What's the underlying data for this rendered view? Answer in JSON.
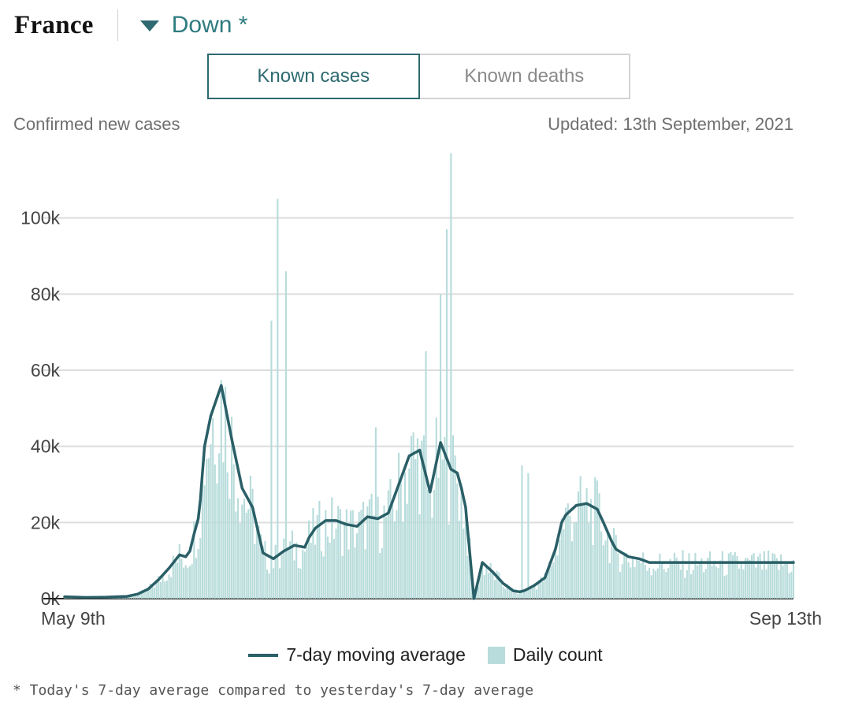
{
  "header": {
    "country": "France",
    "trend_label": "Down *"
  },
  "tabs": [
    {
      "label": "Known cases",
      "active": true
    },
    {
      "label": "Known deaths",
      "active": false
    }
  ],
  "subtitle": "Confirmed new cases",
  "updated": "Updated: 13th September, 2021",
  "legend": {
    "line_label": "7-day moving average",
    "bar_label": "Daily count"
  },
  "footnote": "* Today's 7-day average compared to yesterday's 7-day average",
  "colors": {
    "accent": "#2e6a70",
    "line": "#2a5f67",
    "bars": "#b8dcdb",
    "grid": "#dddddd"
  },
  "chart_data": {
    "type": "bar",
    "title": "",
    "xlabel": "",
    "ylabel": "",
    "x_start_label": "May 9th",
    "x_end_label": "Sep 13th",
    "ylim": [
      0,
      120000
    ],
    "yticks": [
      0,
      20000,
      40000,
      60000,
      80000,
      100000
    ],
    "ytick_labels": [
      "0k",
      "20k",
      "40k",
      "60k",
      "80k",
      "100k"
    ],
    "grid": true,
    "legend_position": "bottom",
    "series": [
      {
        "name": "7-day moving average",
        "kind": "line",
        "x": [
          0,
          10,
          20,
          30,
          35,
          40,
          45,
          50,
          55,
          58,
          60,
          62,
          64,
          65,
          66,
          67,
          70,
          75,
          80,
          85,
          90,
          95,
          100,
          105,
          110,
          115,
          117,
          120,
          125,
          130,
          135,
          140,
          145,
          150,
          155,
          160,
          165,
          170,
          175,
          180,
          185,
          188,
          190,
          192,
          193,
          194,
          196,
          200,
          205,
          210,
          215,
          218,
          220,
          222,
          225,
          230,
          235,
          238,
          240,
          242,
          245,
          250,
          255,
          258,
          260,
          262,
          264,
          270,
          275,
          280,
          285,
          290,
          295,
          300,
          305,
          310,
          315,
          320,
          325,
          330,
          335,
          340,
          345,
          349
        ],
        "values": [
          500,
          300,
          400,
          600,
          1200,
          2500,
          5000,
          8000,
          11500,
          11000,
          12500,
          17000,
          21000,
          26000,
          33000,
          40000,
          48000,
          56000,
          42000,
          29000,
          24000,
          12000,
          10500,
          12500,
          14000,
          13500,
          16000,
          18500,
          20500,
          20500,
          19500,
          19000,
          21500,
          21000,
          22500,
          30000,
          37500,
          39000,
          28000,
          41000,
          34000,
          33000,
          29000,
          24000,
          18000,
          12000,
          0,
          9500,
          7000,
          4000,
          2000,
          1800,
          2100,
          2600,
          3500,
          5500,
          13000,
          20000,
          22000,
          23000,
          24500,
          25000,
          23500,
          20000,
          17500,
          15000,
          13000,
          11000,
          10500,
          9500,
          9500,
          9500,
          9500,
          9500,
          9500,
          9500,
          9500,
          9500,
          9500,
          9500,
          9500,
          9500,
          9500,
          9500
        ]
      },
      {
        "name": "Daily count",
        "kind": "bar",
        "peaks": [
          {
            "x": 102,
            "value": 105000
          },
          {
            "x": 106,
            "value": 86000
          },
          {
            "x": 99,
            "value": 73000
          },
          {
            "x": 185,
            "value": 117000
          },
          {
            "x": 183,
            "value": 97000
          },
          {
            "x": 180,
            "value": 80000
          },
          {
            "x": 173,
            "value": 65000
          },
          {
            "x": 149,
            "value": 45000
          },
          {
            "x": 219,
            "value": 35000
          },
          {
            "x": 222,
            "value": 33000
          }
        ]
      }
    ]
  }
}
